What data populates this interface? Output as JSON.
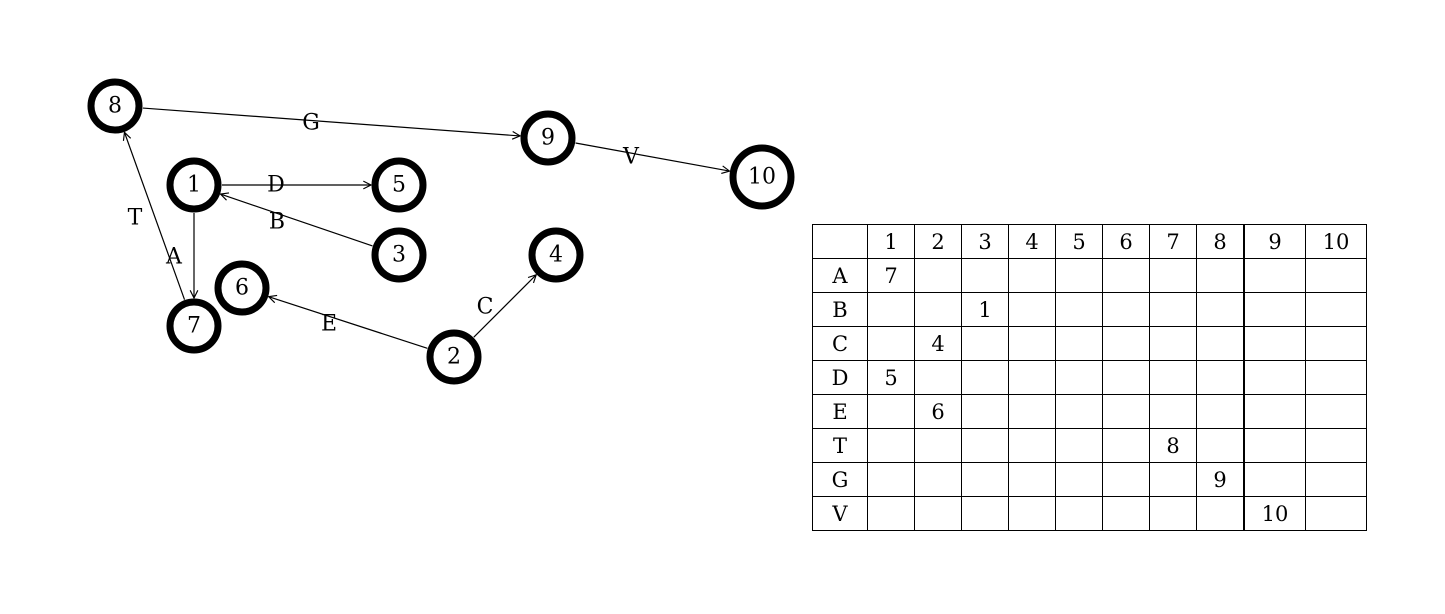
{
  "graph": {
    "nodes": [
      {
        "id": "1",
        "label": "1"
      },
      {
        "id": "2",
        "label": "2"
      },
      {
        "id": "3",
        "label": "3"
      },
      {
        "id": "4",
        "label": "4"
      },
      {
        "id": "5",
        "label": "5"
      },
      {
        "id": "6",
        "label": "6"
      },
      {
        "id": "7",
        "label": "7"
      },
      {
        "id": "8",
        "label": "8"
      },
      {
        "id": "9",
        "label": "9"
      },
      {
        "id": "10",
        "label": "10"
      }
    ],
    "edges": [
      {
        "label": "A",
        "from": "1",
        "to": "7"
      },
      {
        "label": "B",
        "from": "3",
        "to": "1"
      },
      {
        "label": "C",
        "from": "2",
        "to": "4"
      },
      {
        "label": "D",
        "from": "1",
        "to": "5"
      },
      {
        "label": "E",
        "from": "2",
        "to": "6"
      },
      {
        "label": "T",
        "from": "7",
        "to": "8"
      },
      {
        "label": "G",
        "from": "8",
        "to": "9"
      },
      {
        "label": "V",
        "from": "9",
        "to": "10"
      }
    ]
  },
  "matrix": {
    "columns": [
      "1",
      "2",
      "3",
      "4",
      "5",
      "6",
      "7",
      "8",
      "9",
      "10"
    ],
    "rows": [
      {
        "label": "A",
        "cells": [
          "7",
          "",
          "",
          "",
          "",
          "",
          "",
          "",
          "",
          ""
        ]
      },
      {
        "label": "B",
        "cells": [
          "",
          "",
          "1",
          "",
          "",
          "",
          "",
          "",
          "",
          ""
        ]
      },
      {
        "label": "C",
        "cells": [
          "",
          "4",
          "",
          "",
          "",
          "",
          "",
          "",
          "",
          ""
        ]
      },
      {
        "label": "D",
        "cells": [
          "5",
          "",
          "",
          "",
          "",
          "",
          "",
          "",
          "",
          ""
        ]
      },
      {
        "label": "E",
        "cells": [
          "",
          "6",
          "",
          "",
          "",
          "",
          "",
          "",
          "",
          ""
        ]
      },
      {
        "label": "T",
        "cells": [
          "",
          "",
          "",
          "",
          "",
          "",
          "8",
          "",
          "",
          ""
        ]
      },
      {
        "label": "G",
        "cells": [
          "",
          "",
          "",
          "",
          "",
          "",
          "",
          "9",
          "",
          ""
        ]
      },
      {
        "label": "V",
        "cells": [
          "",
          "",
          "",
          "",
          "",
          "",
          "",
          "",
          "10",
          ""
        ]
      }
    ]
  }
}
